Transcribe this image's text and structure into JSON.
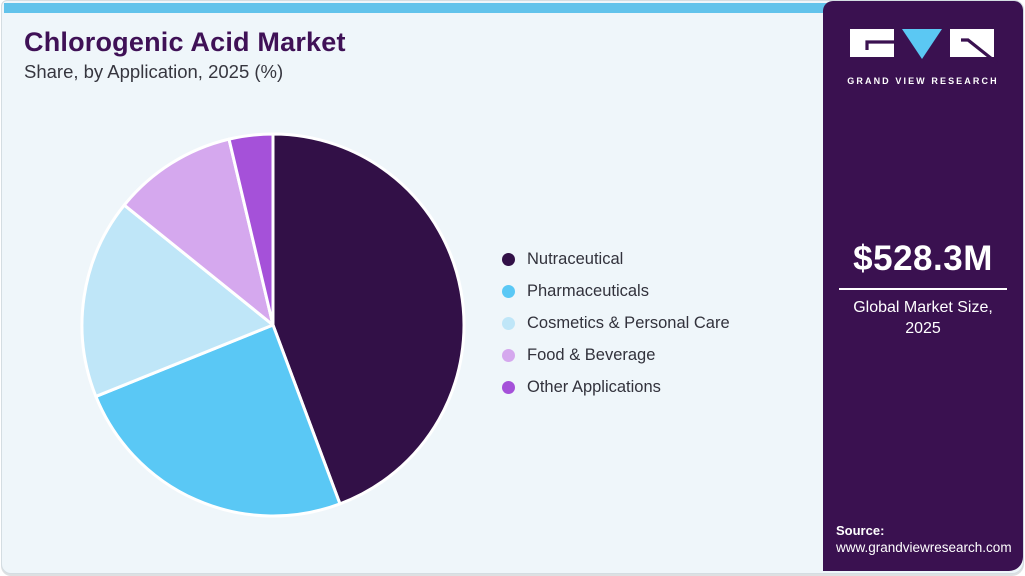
{
  "header": {
    "title": "Chlorogenic Acid Market",
    "subtitle": "Share, by Application, 2025 (%)"
  },
  "chart_data": {
    "type": "pie",
    "title": "Chlorogenic Acid Market Share, by Application, 2025 (%)",
    "labels": [
      "Nutraceutical",
      "Pharmaceuticals",
      "Cosmetics & Personal Care",
      "Food & Beverage",
      "Other Applications"
    ],
    "values": [
      44.3,
      24.6,
      16.9,
      10.5,
      3.7
    ],
    "colors": [
      "#321047",
      "#5AC8F5",
      "#BFE6F8",
      "#D5A8EE",
      "#A551D9"
    ],
    "start_angle_deg": 0,
    "direction": "clockwise",
    "legend_position": "right",
    "slice_gap_color": "#FFFFFF"
  },
  "sidebar": {
    "brand_name": "GRAND VIEW RESEARCH",
    "market_size_value": "$528.3M",
    "market_size_label_line1": "Global Market Size,",
    "market_size_label_line2": "2025",
    "source_label": "Source:",
    "source_url": "www.grandviewresearch.com"
  },
  "colors": {
    "accent_blue": "#62C3EB",
    "sidebar_purple": "#3A1150",
    "background": "#EFF6FA",
    "title_purple": "#3F1156"
  }
}
